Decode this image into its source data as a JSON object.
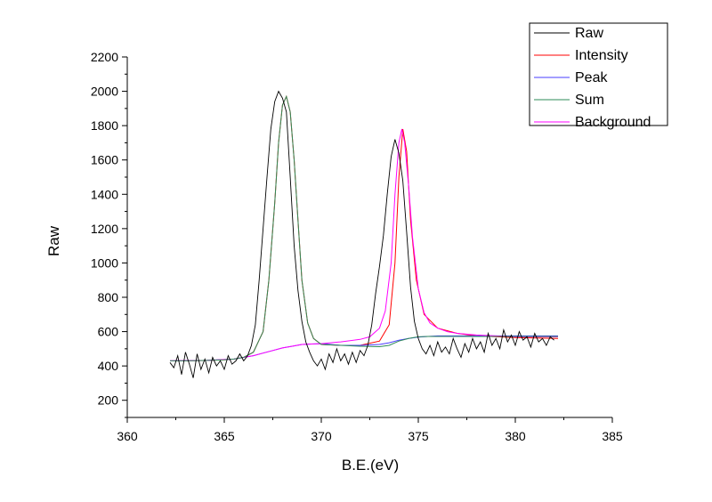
{
  "chart_data": {
    "type": "line",
    "title": "",
    "xlabel": "B.E.(eV)",
    "ylabel": "Raw",
    "xlim": [
      360,
      385
    ],
    "ylim": [
      100,
      2200
    ],
    "xticks": [
      360,
      365,
      370,
      375,
      380,
      385
    ],
    "yticks": [
      200,
      400,
      600,
      800,
      1000,
      1200,
      1400,
      1600,
      1800,
      2000,
      2200
    ],
    "grid": false,
    "legend_position": "top-right",
    "series": [
      {
        "name": "Raw",
        "color": "#000000",
        "x": [
          362.2,
          362.4,
          362.6,
          362.8,
          363.0,
          363.2,
          363.4,
          363.6,
          363.8,
          364.0,
          364.2,
          364.4,
          364.6,
          364.8,
          365.0,
          365.2,
          365.4,
          365.6,
          365.8,
          366.0,
          366.2,
          366.4,
          366.6,
          366.8,
          367.0,
          367.2,
          367.4,
          367.6,
          367.8,
          368.0,
          368.2,
          368.4,
          368.6,
          368.8,
          369.0,
          369.2,
          369.4,
          369.6,
          369.8,
          370.0,
          370.2,
          370.4,
          370.6,
          370.8,
          371.0,
          371.2,
          371.4,
          371.6,
          371.8,
          372.0,
          372.2,
          372.4,
          372.6,
          372.8,
          373.0,
          373.2,
          373.4,
          373.6,
          373.8,
          374.0,
          374.2,
          374.4,
          374.6,
          374.8,
          375.0,
          375.2,
          375.4,
          375.6,
          375.8,
          376.0,
          376.2,
          376.4,
          376.6,
          376.8,
          377.0,
          377.2,
          377.4,
          377.6,
          377.8,
          378.0,
          378.2,
          378.4,
          378.6,
          378.8,
          379.0,
          379.2,
          379.4,
          379.6,
          379.8,
          380.0,
          380.2,
          380.4,
          380.6,
          380.8,
          381.0,
          381.2,
          381.4,
          381.6,
          381.8,
          382.0
        ],
        "values": [
          420,
          390,
          460,
          350,
          480,
          410,
          330,
          470,
          380,
          440,
          360,
          450,
          400,
          430,
          380,
          460,
          410,
          430,
          470,
          430,
          460,
          520,
          640,
          900,
          1200,
          1500,
          1780,
          1940,
          2000,
          1960,
          1880,
          1500,
          1100,
          840,
          660,
          540,
          480,
          430,
          400,
          440,
          380,
          470,
          420,
          500,
          430,
          470,
          410,
          480,
          420,
          490,
          460,
          520,
          640,
          820,
          980,
          1160,
          1400,
          1620,
          1720,
          1640,
          1480,
          1180,
          860,
          660,
          560,
          500,
          470,
          520,
          460,
          540,
          480,
          510,
          470,
          560,
          500,
          450,
          530,
          480,
          560,
          500,
          540,
          480,
          590,
          520,
          560,
          500,
          610,
          540,
          580,
          520,
          600,
          550,
          570,
          510,
          590,
          540,
          560,
          520,
          570,
          550
        ]
      },
      {
        "name": "Intensity",
        "color": "#ff0000",
        "x": [
          362.2,
          363.0,
          364.0,
          365.0,
          365.5,
          366.0,
          366.5,
          367.0,
          367.3,
          367.6,
          367.8,
          368.0,
          368.2,
          368.4,
          368.6,
          368.8,
          369.0,
          369.3,
          369.6,
          370.0,
          371.0,
          372.0,
          373.0,
          373.5,
          373.8,
          374.0,
          374.2,
          374.4,
          374.6,
          374.9,
          375.3,
          376.0,
          377.0,
          378.0,
          380.0,
          382.2
        ],
        "values": [
          430,
          430,
          432,
          436,
          440,
          450,
          480,
          600,
          900,
          1350,
          1700,
          1920,
          1970,
          1880,
          1600,
          1250,
          900,
          650,
          560,
          525,
          520,
          520,
          545,
          640,
          1000,
          1500,
          1780,
          1650,
          1250,
          900,
          700,
          620,
          590,
          575,
          565,
          560
        ]
      },
      {
        "name": "Peak",
        "color": "#4a3cff",
        "x": [
          362.2,
          364.0,
          365.5,
          366.5,
          367.0,
          367.5,
          368.0,
          368.5,
          369.0,
          369.5,
          370.0,
          371.0,
          372.0,
          373.0,
          373.5,
          374.0,
          374.5,
          375.0,
          375.5,
          376.0,
          377.0,
          378.0,
          380.0,
          382.2
        ],
        "values": [
          430,
          432,
          440,
          460,
          475,
          490,
          505,
          515,
          525,
          528,
          530,
          520,
          520,
          525,
          535,
          550,
          560,
          568,
          572,
          575,
          575,
          575,
          575,
          575
        ]
      },
      {
        "name": "Sum",
        "color": "#2e8b57",
        "x": [
          362.2,
          363.0,
          364.0,
          365.0,
          365.5,
          366.0,
          366.5,
          367.0,
          367.3,
          367.6,
          367.8,
          368.0,
          368.2,
          368.4,
          368.6,
          368.8,
          369.0,
          369.3,
          369.6,
          370.0,
          371.0,
          372.0,
          373.0,
          373.5,
          374.0,
          374.5,
          375.0,
          375.5,
          376.0,
          377.0,
          378.0,
          380.0,
          382.2
        ],
        "values": [
          430,
          430,
          432,
          436,
          440,
          450,
          480,
          600,
          900,
          1350,
          1700,
          1920,
          1970,
          1880,
          1600,
          1250,
          900,
          650,
          560,
          525,
          520,
          515,
          512,
          520,
          545,
          560,
          570,
          572,
          572,
          572,
          572,
          572,
          572
        ]
      },
      {
        "name": "Background",
        "color": "#ff00ff",
        "x": [
          362.2,
          364.0,
          365.5,
          366.5,
          367.0,
          367.5,
          368.0,
          368.5,
          369.0,
          369.5,
          370.0,
          371.0,
          372.0,
          372.5,
          373.0,
          373.3,
          373.6,
          373.8,
          374.0,
          374.15,
          374.3,
          374.5,
          374.7,
          375.0,
          375.3,
          375.6,
          376.0,
          376.5,
          377.0,
          378.0,
          380.0,
          382.2
        ],
        "values": [
          430,
          432,
          440,
          460,
          475,
          490,
          505,
          515,
          525,
          528,
          530,
          540,
          555,
          570,
          620,
          720,
          1000,
          1400,
          1700,
          1780,
          1700,
          1450,
          1150,
          850,
          710,
          650,
          620,
          600,
          590,
          580,
          570,
          570
        ]
      }
    ]
  }
}
